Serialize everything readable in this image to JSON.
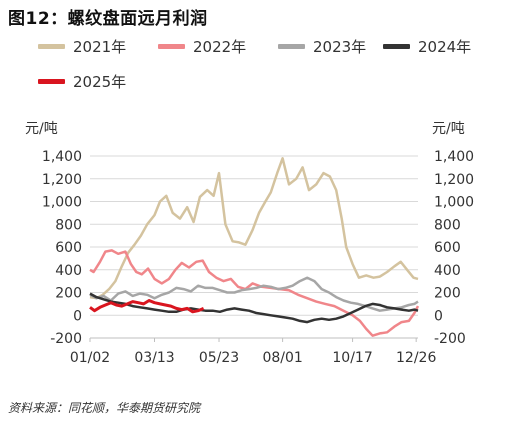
{
  "title": "图12：螺纹盘面远月利润",
  "source": "资料来源：同花顺，华泰期货研究院",
  "chart_data": {
    "type": "line",
    "title": "图12：螺纹盘面远月利润",
    "ylabel_left": "元/吨",
    "ylabel_right": "元/吨",
    "ylim": [
      -200,
      1400
    ],
    "y_ticks": [
      "-200",
      "0",
      "200",
      "400",
      "600",
      "800",
      "1,000",
      "1,200",
      "1,400"
    ],
    "y_tick_values": [
      -200,
      0,
      200,
      400,
      600,
      800,
      1000,
      1200,
      1400
    ],
    "x_ticks": [
      "01/02",
      "03/13",
      "05/23",
      "08/01",
      "10/17",
      "12/26"
    ],
    "x_tick_days": [
      1,
      72,
      143,
      213,
      290,
      360
    ],
    "xlim_days": [
      1,
      362
    ],
    "x_unit": "day of year",
    "grid": "horizontal",
    "legend_position": "top",
    "series": [
      {
        "name": "2021年",
        "color": "#d4c39f",
        "x": [
          1,
          8,
          15,
          22,
          29,
          36,
          43,
          50,
          57,
          64,
          72,
          78,
          85,
          92,
          100,
          108,
          115,
          122,
          130,
          137,
          143,
          150,
          158,
          165,
          172,
          180,
          187,
          194,
          200,
          207,
          213,
          220,
          228,
          235,
          242,
          250,
          258,
          265,
          272,
          278,
          283,
          290,
          297,
          305,
          313,
          320,
          328,
          336,
          343,
          350,
          357,
          362
        ],
        "y": [
          160,
          150,
          180,
          230,
          300,
          430,
          550,
          620,
          700,
          800,
          880,
          1000,
          1050,
          900,
          850,
          950,
          820,
          1040,
          1100,
          1050,
          1250,
          800,
          650,
          640,
          620,
          750,
          900,
          1000,
          1080,
          1250,
          1380,
          1150,
          1200,
          1300,
          1100,
          1150,
          1250,
          1220,
          1100,
          850,
          600,
          450,
          330,
          350,
          330,
          340,
          380,
          430,
          470,
          400,
          330,
          320
        ]
      },
      {
        "name": "2022年",
        "color": "#f0868a",
        "x": [
          1,
          5,
          12,
          18,
          25,
          32,
          40,
          46,
          52,
          58,
          65,
          72,
          80,
          88,
          95,
          102,
          110,
          118,
          125,
          132,
          140,
          148,
          156,
          164,
          172,
          180,
          190,
          200,
          210,
          220,
          230,
          240,
          250,
          260,
          270,
          280,
          290,
          298,
          305,
          312,
          320,
          328,
          336,
          344,
          352,
          358,
          362
        ],
        "y": [
          400,
          380,
          470,
          560,
          570,
          540,
          560,
          450,
          380,
          360,
          410,
          320,
          280,
          320,
          400,
          460,
          420,
          470,
          480,
          380,
          330,
          300,
          320,
          250,
          230,
          280,
          250,
          240,
          230,
          220,
          180,
          150,
          120,
          100,
          80,
          40,
          0,
          -50,
          -120,
          -180,
          -160,
          -150,
          -100,
          -60,
          -50,
          20,
          80
        ]
      },
      {
        "name": "2023年",
        "color": "#a6a6a6",
        "x": [
          1,
          8,
          16,
          24,
          32,
          40,
          48,
          56,
          64,
          72,
          80,
          88,
          96,
          104,
          112,
          120,
          128,
          136,
          144,
          152,
          160,
          168,
          176,
          184,
          192,
          200,
          208,
          216,
          224,
          232,
          240,
          248,
          256,
          264,
          272,
          280,
          288,
          296,
          304,
          312,
          320,
          328,
          336,
          344,
          352,
          358,
          362
        ],
        "y": [
          180,
          150,
          170,
          130,
          190,
          210,
          170,
          190,
          180,
          150,
          180,
          200,
          240,
          230,
          210,
          260,
          240,
          240,
          220,
          200,
          200,
          220,
          230,
          240,
          260,
          250,
          230,
          240,
          260,
          300,
          330,
          300,
          230,
          200,
          160,
          130,
          110,
          100,
          80,
          60,
          40,
          50,
          60,
          70,
          90,
          100,
          120
        ]
      },
      {
        "name": "2024年",
        "color": "#333333",
        "x": [
          1,
          8,
          16,
          24,
          32,
          40,
          48,
          56,
          64,
          72,
          80,
          88,
          96,
          104,
          112,
          120,
          128,
          136,
          144,
          152,
          160,
          168,
          176,
          184,
          192,
          200,
          208,
          216,
          224,
          232,
          240,
          248,
          256,
          264,
          272,
          280,
          288,
          296,
          304,
          312,
          320,
          328,
          336,
          344,
          352,
          358,
          362
        ],
        "y": [
          190,
          160,
          140,
          120,
          110,
          100,
          80,
          70,
          60,
          50,
          40,
          30,
          30,
          50,
          60,
          50,
          40,
          40,
          30,
          50,
          60,
          50,
          40,
          20,
          10,
          0,
          -10,
          -20,
          -30,
          -50,
          -60,
          -40,
          -30,
          -40,
          -30,
          -10,
          20,
          50,
          80,
          100,
          90,
          70,
          60,
          50,
          40,
          50,
          40
        ]
      },
      {
        "name": "2025年",
        "color": "#d9151f",
        "x": [
          1,
          6,
          12,
          18,
          24,
          30,
          36,
          42,
          48,
          54,
          60,
          66,
          72,
          78,
          84,
          90,
          96,
          102,
          108,
          114,
          120,
          126
        ],
        "y": [
          70,
          40,
          70,
          90,
          110,
          90,
          80,
          100,
          120,
          110,
          100,
          130,
          110,
          100,
          90,
          80,
          60,
          50,
          60,
          30,
          40,
          60
        ]
      }
    ]
  }
}
